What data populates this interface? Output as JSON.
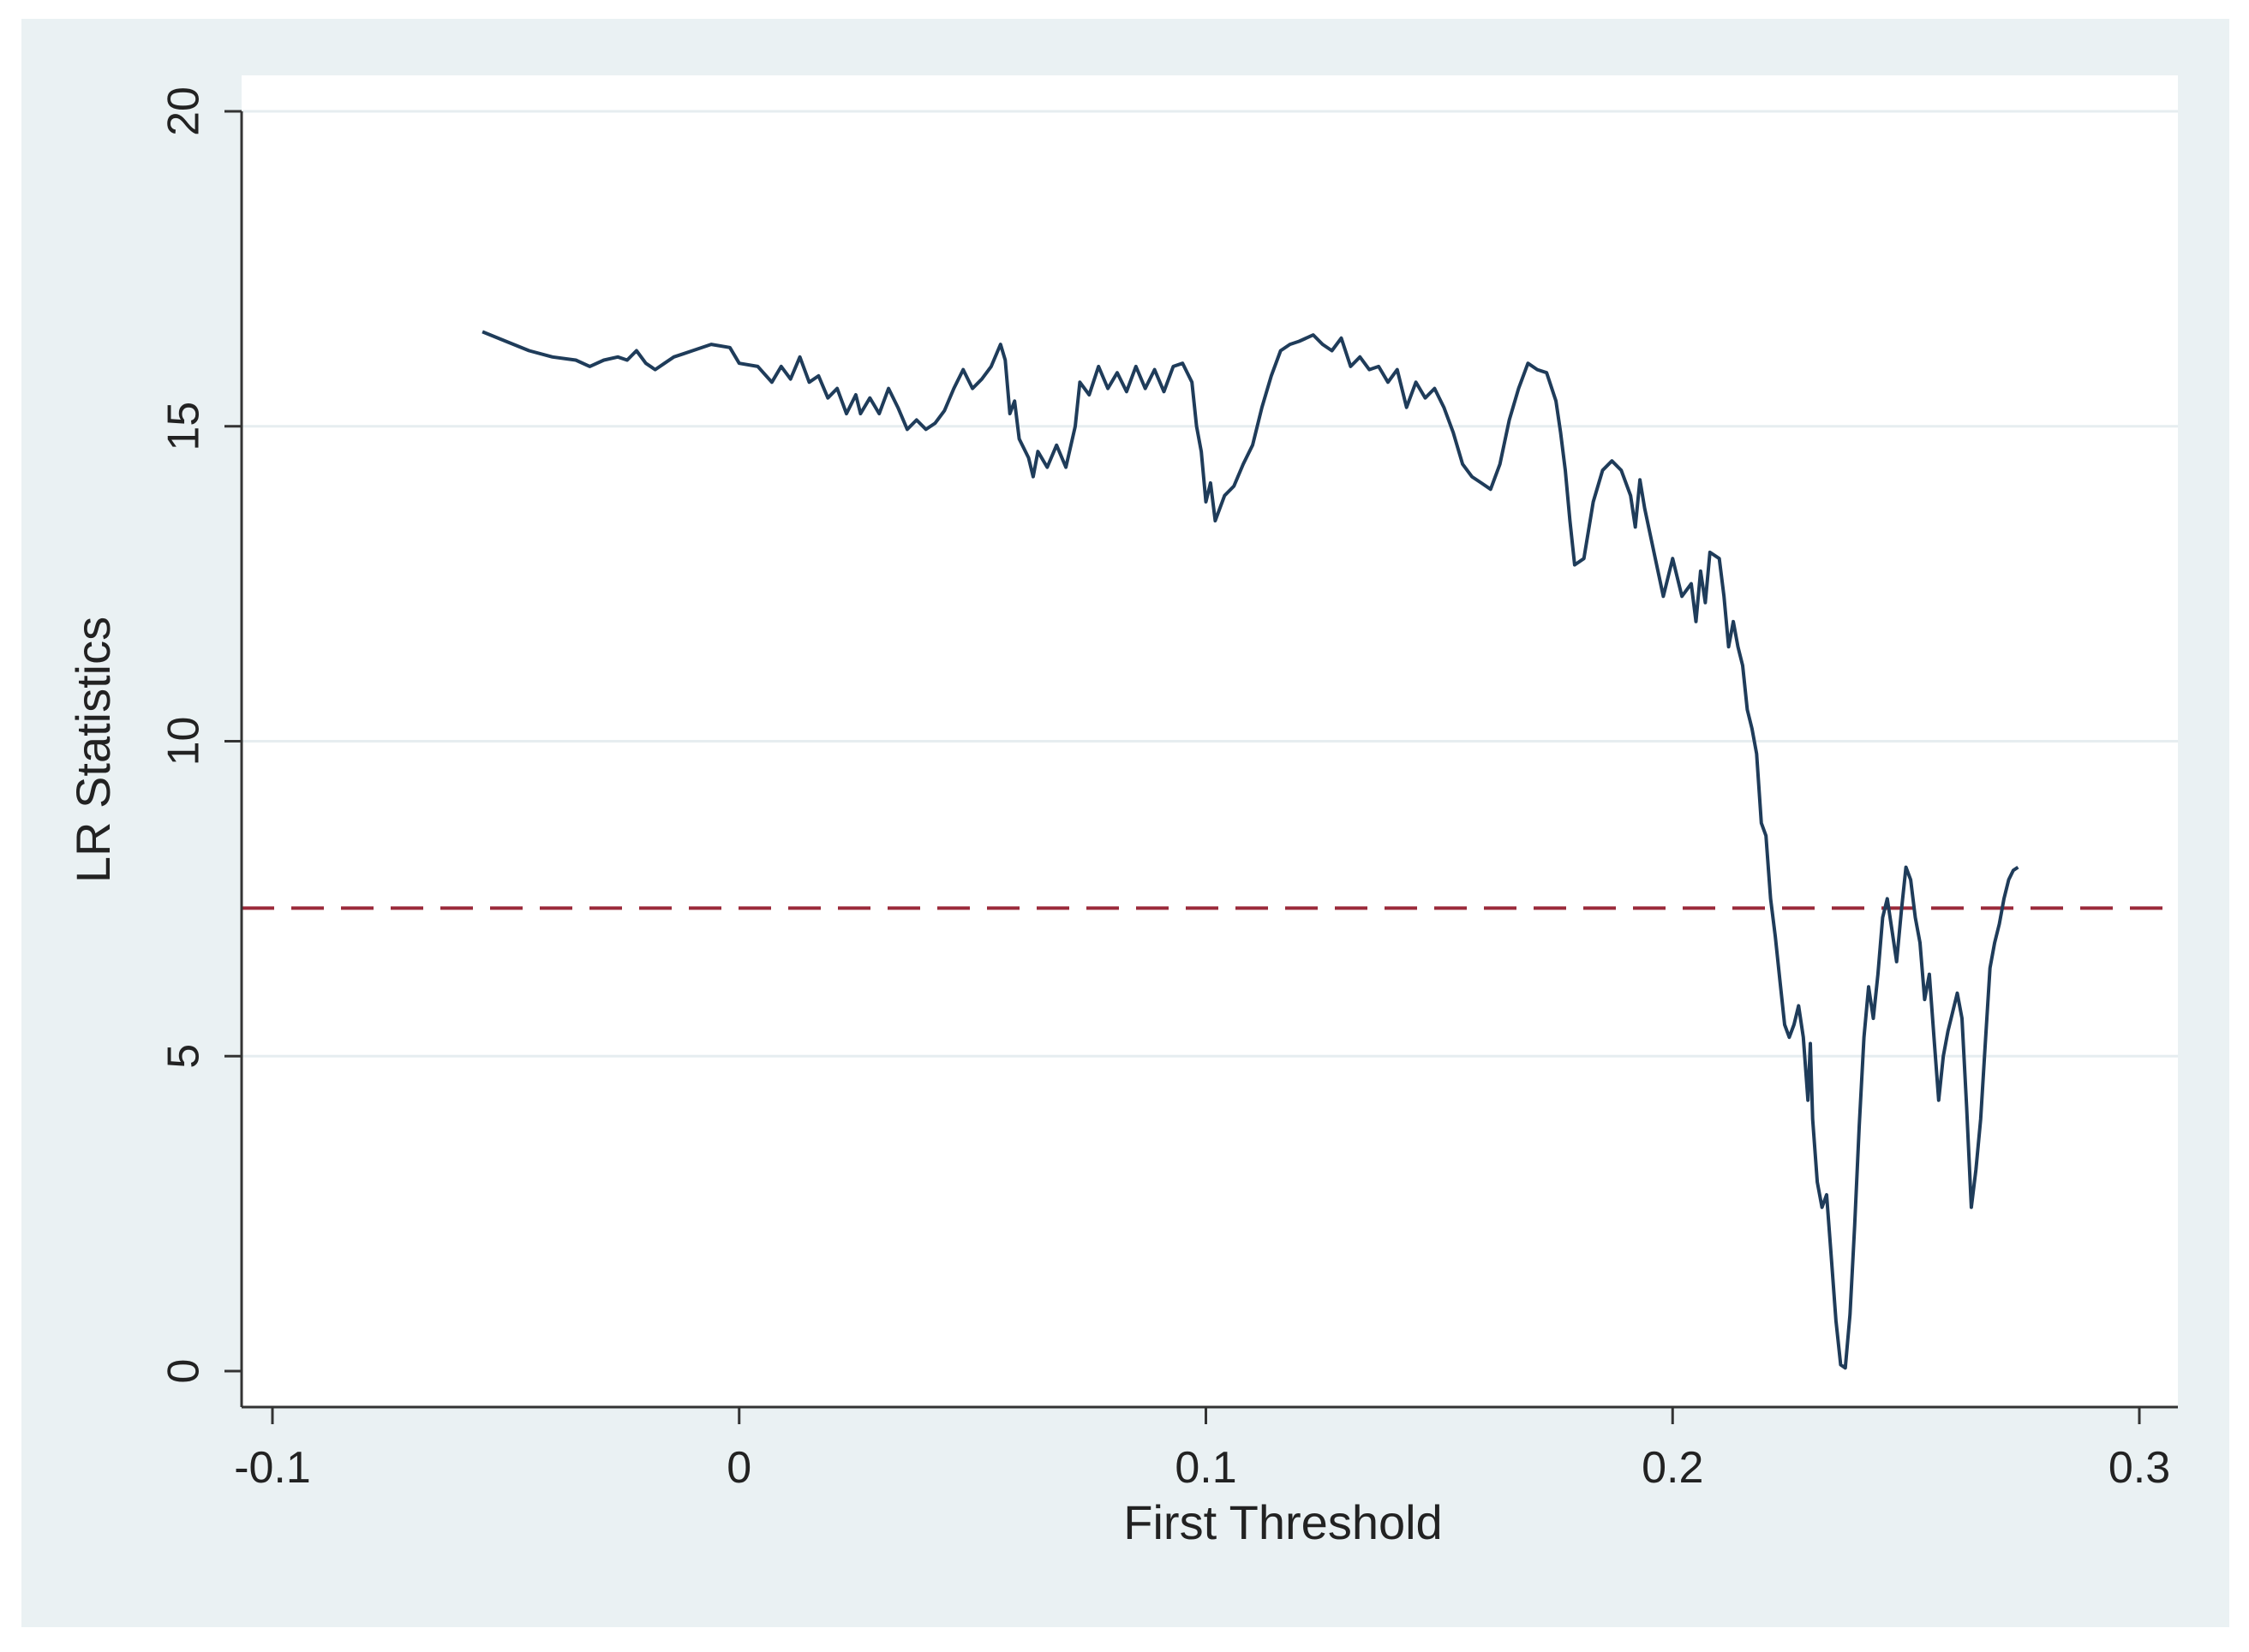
{
  "chart_data": {
    "type": "line",
    "title": "",
    "xlabel": "First Threshold",
    "ylabel": "LR Statistics",
    "xlim": [
      -0.1,
      0.3
    ],
    "ylim": [
      0,
      20
    ],
    "x_ticks": [
      -0.1,
      0,
      0.1,
      0.2,
      0.3
    ],
    "x_tick_labels": [
      "-0.1",
      "0",
      "0.1",
      "0.2",
      "0.3"
    ],
    "y_ticks": [
      0,
      5,
      10,
      15,
      20
    ],
    "y_tick_labels": [
      "0",
      "5",
      "10",
      "15",
      "20"
    ],
    "grid": "horizontal",
    "legend": "none",
    "reference_line": {
      "y": 7.35,
      "style": "dashed",
      "color": "#9b2a3a"
    },
    "series": [
      {
        "color": "#1f3c5a",
        "points": [
          [
            -0.055,
            16.5
          ],
          [
            -0.05,
            16.35
          ],
          [
            -0.045,
            16.2
          ],
          [
            -0.04,
            16.1
          ],
          [
            -0.035,
            16.05
          ],
          [
            -0.032,
            15.95
          ],
          [
            -0.029,
            16.05
          ],
          [
            -0.026,
            16.1
          ],
          [
            -0.024,
            16.05
          ],
          [
            -0.022,
            16.2
          ],
          [
            -0.02,
            16.0
          ],
          [
            -0.018,
            15.9
          ],
          [
            -0.016,
            16.0
          ],
          [
            -0.014,
            16.1
          ],
          [
            -0.012,
            16.15
          ],
          [
            -0.01,
            16.2
          ],
          [
            -0.006,
            16.3
          ],
          [
            -0.002,
            16.25
          ],
          [
            0.0,
            16.0
          ],
          [
            0.004,
            15.95
          ],
          [
            0.007,
            15.7
          ],
          [
            0.009,
            15.95
          ],
          [
            0.011,
            15.75
          ],
          [
            0.013,
            16.1
          ],
          [
            0.015,
            15.7
          ],
          [
            0.017,
            15.8
          ],
          [
            0.019,
            15.45
          ],
          [
            0.021,
            15.6
          ],
          [
            0.023,
            15.2
          ],
          [
            0.025,
            15.5
          ],
          [
            0.026,
            15.2
          ],
          [
            0.028,
            15.45
          ],
          [
            0.03,
            15.2
          ],
          [
            0.032,
            15.6
          ],
          [
            0.034,
            15.3
          ],
          [
            0.036,
            14.95
          ],
          [
            0.038,
            15.1
          ],
          [
            0.04,
            14.95
          ],
          [
            0.042,
            15.05
          ],
          [
            0.044,
            15.25
          ],
          [
            0.046,
            15.6
          ],
          [
            0.048,
            15.9
          ],
          [
            0.05,
            15.6
          ],
          [
            0.052,
            15.75
          ],
          [
            0.054,
            15.95
          ],
          [
            0.056,
            16.3
          ],
          [
            0.057,
            16.05
          ],
          [
            0.058,
            15.2
          ],
          [
            0.059,
            15.4
          ],
          [
            0.06,
            14.8
          ],
          [
            0.062,
            14.5
          ],
          [
            0.063,
            14.2
          ],
          [
            0.064,
            14.6
          ],
          [
            0.066,
            14.35
          ],
          [
            0.068,
            14.7
          ],
          [
            0.07,
            14.35
          ],
          [
            0.072,
            15.0
          ],
          [
            0.073,
            15.7
          ],
          [
            0.075,
            15.5
          ],
          [
            0.077,
            15.95
          ],
          [
            0.079,
            15.6
          ],
          [
            0.081,
            15.85
          ],
          [
            0.083,
            15.55
          ],
          [
            0.085,
            15.95
          ],
          [
            0.087,
            15.6
          ],
          [
            0.089,
            15.9
          ],
          [
            0.091,
            15.55
          ],
          [
            0.093,
            15.95
          ],
          [
            0.095,
            16.0
          ],
          [
            0.097,
            15.7
          ],
          [
            0.098,
            15.0
          ],
          [
            0.099,
            14.6
          ],
          [
            0.1,
            13.8
          ],
          [
            0.101,
            14.1
          ],
          [
            0.102,
            13.5
          ],
          [
            0.104,
            13.9
          ],
          [
            0.106,
            14.05
          ],
          [
            0.108,
            14.4
          ],
          [
            0.11,
            14.7
          ],
          [
            0.112,
            15.3
          ],
          [
            0.114,
            15.8
          ],
          [
            0.116,
            16.2
          ],
          [
            0.118,
            16.3
          ],
          [
            0.12,
            16.35
          ],
          [
            0.123,
            16.45
          ],
          [
            0.125,
            16.3
          ],
          [
            0.127,
            16.2
          ],
          [
            0.129,
            16.4
          ],
          [
            0.131,
            15.95
          ],
          [
            0.133,
            16.1
          ],
          [
            0.135,
            15.9
          ],
          [
            0.137,
            15.95
          ],
          [
            0.139,
            15.7
          ],
          [
            0.141,
            15.9
          ],
          [
            0.143,
            15.3
          ],
          [
            0.145,
            15.7
          ],
          [
            0.147,
            15.45
          ],
          [
            0.149,
            15.6
          ],
          [
            0.151,
            15.3
          ],
          [
            0.153,
            14.9
          ],
          [
            0.155,
            14.4
          ],
          [
            0.157,
            14.2
          ],
          [
            0.159,
            14.1
          ],
          [
            0.161,
            14.0
          ],
          [
            0.163,
            14.4
          ],
          [
            0.165,
            15.1
          ],
          [
            0.167,
            15.6
          ],
          [
            0.169,
            16.0
          ],
          [
            0.171,
            15.9
          ],
          [
            0.173,
            15.85
          ],
          [
            0.175,
            15.4
          ],
          [
            0.176,
            14.9
          ],
          [
            0.177,
            14.3
          ],
          [
            0.178,
            13.5
          ],
          [
            0.179,
            12.8
          ],
          [
            0.181,
            12.9
          ],
          [
            0.183,
            13.8
          ],
          [
            0.185,
            14.3
          ],
          [
            0.187,
            14.45
          ],
          [
            0.189,
            14.3
          ],
          [
            0.191,
            13.9
          ],
          [
            0.192,
            13.4
          ],
          [
            0.193,
            14.15
          ],
          [
            0.194,
            13.7
          ],
          [
            0.196,
            13.0
          ],
          [
            0.198,
            12.3
          ],
          [
            0.2,
            12.9
          ],
          [
            0.202,
            12.3
          ],
          [
            0.204,
            12.5
          ],
          [
            0.205,
            11.9
          ],
          [
            0.206,
            12.7
          ],
          [
            0.207,
            12.2
          ],
          [
            0.208,
            13.0
          ],
          [
            0.21,
            12.9
          ],
          [
            0.211,
            12.3
          ],
          [
            0.212,
            11.5
          ],
          [
            0.213,
            11.9
          ],
          [
            0.214,
            11.5
          ],
          [
            0.215,
            11.2
          ],
          [
            0.216,
            10.5
          ],
          [
            0.217,
            10.2
          ],
          [
            0.218,
            9.8
          ],
          [
            0.219,
            8.7
          ],
          [
            0.22,
            8.5
          ],
          [
            0.221,
            7.5
          ],
          [
            0.222,
            6.9
          ],
          [
            0.223,
            6.2
          ],
          [
            0.224,
            5.5
          ],
          [
            0.225,
            5.3
          ],
          [
            0.226,
            5.5
          ],
          [
            0.227,
            5.8
          ],
          [
            0.228,
            5.3
          ],
          [
            0.229,
            4.3
          ],
          [
            0.2295,
            5.2
          ],
          [
            0.23,
            4.0
          ],
          [
            0.231,
            3.0
          ],
          [
            0.232,
            2.6
          ],
          [
            0.233,
            2.8
          ],
          [
            0.234,
            1.8
          ],
          [
            0.235,
            0.8
          ],
          [
            0.236,
            0.1
          ],
          [
            0.237,
            0.05
          ],
          [
            0.238,
            0.9
          ],
          [
            0.239,
            2.3
          ],
          [
            0.24,
            3.9
          ],
          [
            0.241,
            5.3
          ],
          [
            0.242,
            6.1
          ],
          [
            0.243,
            5.6
          ],
          [
            0.244,
            6.3
          ],
          [
            0.245,
            7.2
          ],
          [
            0.246,
            7.5
          ],
          [
            0.247,
            7.0
          ],
          [
            0.248,
            6.5
          ],
          [
            0.249,
            7.3
          ],
          [
            0.25,
            8.0
          ],
          [
            0.251,
            7.8
          ],
          [
            0.252,
            7.2
          ],
          [
            0.253,
            6.8
          ],
          [
            0.254,
            5.9
          ],
          [
            0.255,
            6.3
          ],
          [
            0.256,
            5.3
          ],
          [
            0.257,
            4.3
          ],
          [
            0.258,
            5.0
          ],
          [
            0.259,
            5.4
          ],
          [
            0.26,
            5.7
          ],
          [
            0.261,
            6.0
          ],
          [
            0.262,
            5.6
          ],
          [
            0.263,
            4.2
          ],
          [
            0.264,
            2.6
          ],
          [
            0.265,
            3.2
          ],
          [
            0.266,
            4.0
          ],
          [
            0.267,
            5.2
          ],
          [
            0.268,
            6.4
          ],
          [
            0.269,
            6.8
          ],
          [
            0.27,
            7.1
          ],
          [
            0.271,
            7.5
          ],
          [
            0.272,
            7.8
          ],
          [
            0.273,
            7.95
          ],
          [
            0.274,
            8.0
          ]
        ]
      }
    ]
  }
}
